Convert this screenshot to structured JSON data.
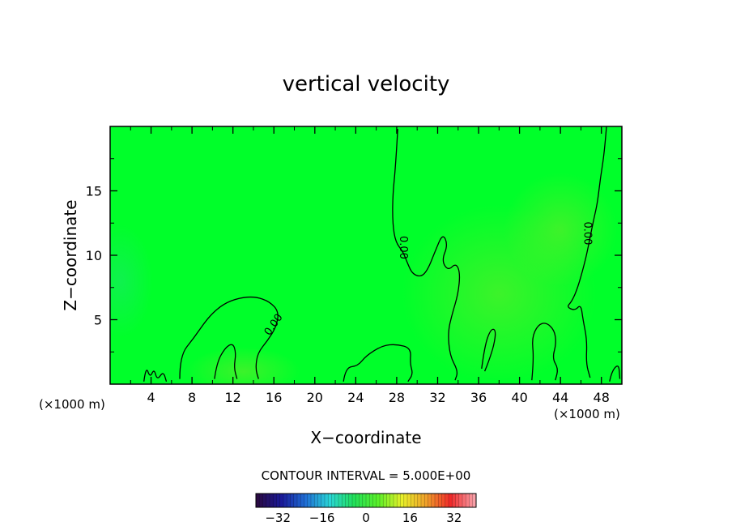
{
  "chart_data": {
    "type": "contour",
    "title": "vertical velocity",
    "xlabel": "X−coordinate",
    "ylabel": "Z−coordinate",
    "x_unit_left": "(×1000 m)",
    "x_unit_right": "(×1000 m)",
    "xlim": [
      0,
      50
    ],
    "ylim": [
      0,
      20
    ],
    "x_ticks": [
      4,
      8,
      12,
      16,
      20,
      24,
      28,
      32,
      36,
      40,
      44,
      48
    ],
    "y_ticks": [
      5,
      10,
      15
    ],
    "field_background": "#00ff2a",
    "contour_labels": [
      {
        "text": "0.00",
        "x": 16,
        "y": 4.6,
        "angle": -55
      },
      {
        "text": "0.00",
        "x": 28.6,
        "y": 10.6,
        "angle": 90
      },
      {
        "text": "0.00",
        "x": 46.6,
        "y": 11.7,
        "angle": 90
      }
    ],
    "contours": [
      [
        [
          6.8,
          0.4
        ],
        [
          6.8,
          2.2
        ],
        [
          8.2,
          3.6
        ],
        [
          9.6,
          5.2
        ],
        [
          11,
          6.2
        ],
        [
          12.6,
          6.7
        ],
        [
          14.2,
          6.8
        ],
        [
          15.6,
          6.4
        ],
        [
          16.5,
          5.6
        ],
        [
          16.2,
          4.4
        ],
        [
          15.4,
          3.4
        ],
        [
          14.4,
          2.4
        ],
        [
          14.2,
          1.2
        ],
        [
          14.5,
          0.4
        ]
      ],
      [
        [
          10.2,
          0.4
        ],
        [
          10.4,
          1.6
        ],
        [
          11.2,
          2.8
        ],
        [
          12,
          3.2
        ],
        [
          12.3,
          2.4
        ],
        [
          12.1,
          1.3
        ],
        [
          12.4,
          0.4
        ]
      ],
      [
        [
          3.3,
          0.2
        ],
        [
          3.5,
          1.4
        ],
        [
          3.9,
          0.5
        ],
        [
          4.3,
          1.2
        ],
        [
          4.6,
          0.3
        ],
        [
          5.2,
          1
        ],
        [
          5.5,
          0.2
        ]
      ],
      [
        [
          22.8,
          0.2
        ],
        [
          23,
          1.3
        ],
        [
          24.2,
          1.4
        ],
        [
          25,
          2.2
        ],
        [
          26.6,
          3
        ],
        [
          28,
          3.1
        ],
        [
          29.4,
          2.8
        ],
        [
          29.3,
          1.6
        ],
        [
          29.6,
          0.8
        ],
        [
          29.1,
          0.2
        ]
      ],
      [
        [
          28.1,
          19.8
        ],
        [
          27.9,
          17
        ],
        [
          27.6,
          14.6
        ],
        [
          27.6,
          12.4
        ],
        [
          27.9,
          11
        ],
        [
          28.6,
          10.3
        ],
        [
          29.1,
          9.3
        ],
        [
          29.5,
          8.6
        ],
        [
          30.3,
          8.3
        ],
        [
          31,
          8.8
        ],
        [
          31.8,
          10.4
        ],
        [
          32.5,
          11.7
        ],
        [
          33,
          10.8
        ],
        [
          32.4,
          9.6
        ],
        [
          33,
          8.8
        ],
        [
          33.8,
          9.4
        ],
        [
          34.2,
          8.6
        ],
        [
          34,
          7
        ],
        [
          33.4,
          5.4
        ],
        [
          33,
          4
        ],
        [
          33.2,
          2.2
        ],
        [
          34,
          1
        ],
        [
          33.7,
          0.3
        ]
      ],
      [
        [
          36.3,
          1.2
        ],
        [
          36.6,
          3
        ],
        [
          37.2,
          4.3
        ],
        [
          37.7,
          4.2
        ],
        [
          37.5,
          3
        ],
        [
          37,
          1.8
        ],
        [
          36.6,
          1
        ]
      ],
      [
        [
          48.5,
          20
        ],
        [
          48.3,
          18
        ],
        [
          47.9,
          16
        ],
        [
          47.6,
          14
        ],
        [
          47.2,
          12.6
        ],
        [
          46.7,
          10.6
        ],
        [
          46.3,
          9.2
        ],
        [
          45.7,
          7.5
        ],
        [
          45.1,
          6.4
        ],
        [
          44.6,
          6
        ],
        [
          45.4,
          5.7
        ],
        [
          46,
          6.2
        ],
        [
          46.2,
          5
        ],
        [
          46.6,
          3.4
        ],
        [
          46.5,
          1.6
        ],
        [
          46.9,
          0.5
        ]
      ],
      [
        [
          41.2,
          0.3
        ],
        [
          41.4,
          2
        ],
        [
          41.2,
          3.6
        ],
        [
          41.8,
          4.6
        ],
        [
          42.6,
          4.8
        ],
        [
          43.4,
          4.2
        ],
        [
          43.6,
          3.2
        ],
        [
          43.2,
          2
        ],
        [
          43.8,
          1.2
        ],
        [
          43.5,
          0.3
        ]
      ],
      [
        [
          48.8,
          0.2
        ],
        [
          49,
          1
        ],
        [
          49.7,
          1.6
        ],
        [
          49.8,
          0.4
        ]
      ]
    ],
    "colorbar": {
      "ticks": [
        -32,
        -16,
        0,
        16,
        32
      ],
      "range": [
        -40,
        40
      ],
      "note": "CONTOUR INTERVAL = 5.000E+00",
      "stops": [
        "#2a0a44",
        "#1a1a9a",
        "#1f6fd6",
        "#2ad6d6",
        "#22e05a",
        "#5af02a",
        "#e8f02a",
        "#f0a02a",
        "#f02a2a",
        "#f8a0a8"
      ]
    }
  }
}
